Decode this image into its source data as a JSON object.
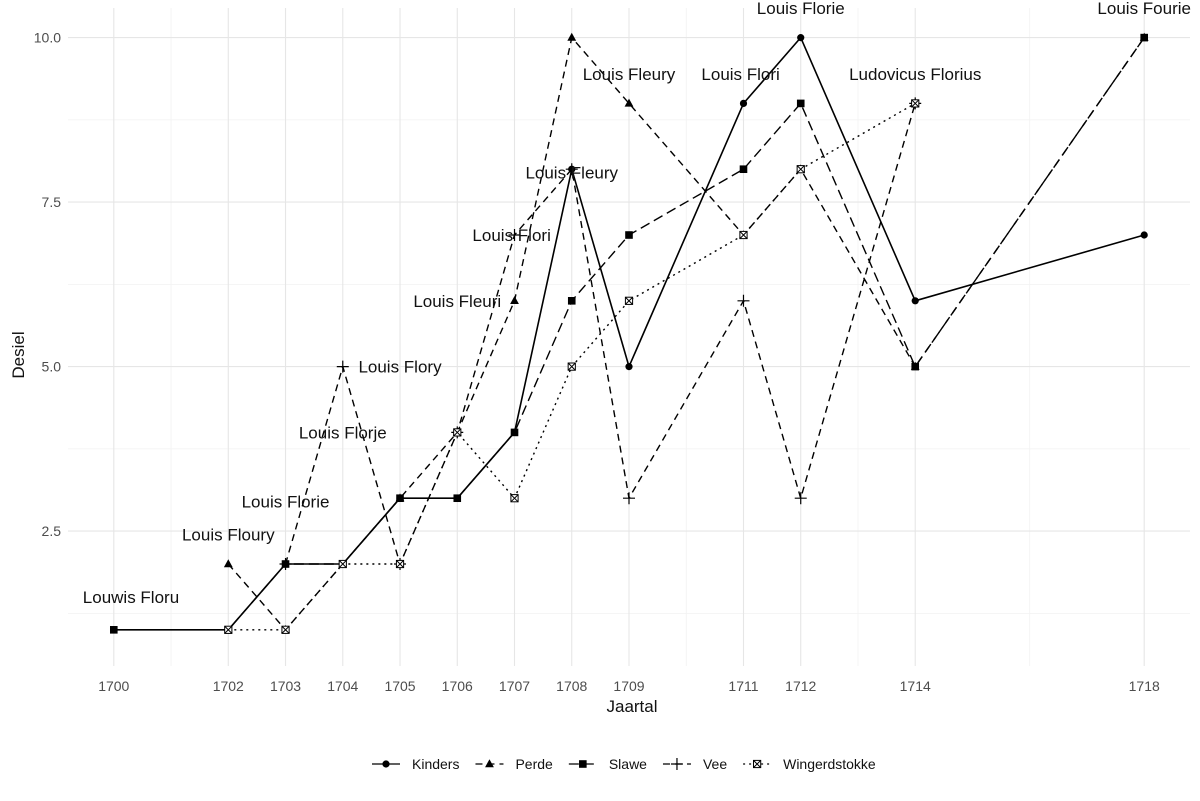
{
  "chart_data": {
    "type": "line",
    "title": "",
    "xlabel": "Jaartal",
    "ylabel": "Desiel",
    "xlim": [
      1699.2,
      1718.8
    ],
    "ylim": [
      0.45,
      10.45
    ],
    "x_ticks": [
      1700,
      1702,
      1703,
      1704,
      1705,
      1706,
      1707,
      1708,
      1709,
      1711,
      1712,
      1714,
      1718
    ],
    "y_ticks": [
      2.5,
      5.0,
      7.5,
      10.0
    ],
    "y_tick_labels": [
      "2.5",
      "5.0",
      "7.5",
      "10.0"
    ],
    "grid": true,
    "legend_position": "bottom",
    "series": [
      {
        "name": "Kinders",
        "line": "solid",
        "marker": "circle",
        "x": [
          1700,
          1702,
          1703,
          1704,
          1705,
          1706,
          1707,
          1708,
          1709,
          1711,
          1712,
          1714,
          1718
        ],
        "y": [
          1,
          1,
          2,
          2,
          3,
          3,
          4,
          8,
          5,
          9,
          10,
          6,
          7
        ]
      },
      {
        "name": "Perde",
        "line": "dashed",
        "marker": "triangle",
        "x": [
          1702,
          1703,
          1705,
          1706,
          1707,
          1708,
          1709,
          1711,
          1712,
          1714,
          1718
        ],
        "y": [
          2,
          1,
          3,
          4,
          6,
          10,
          9,
          7,
          8,
          5,
          10
        ]
      },
      {
        "name": "Slawe",
        "line": "longdash",
        "marker": "square",
        "x": [
          1700,
          1702,
          1703,
          1704,
          1705,
          1706,
          1707,
          1708,
          1709,
          1711,
          1712,
          1714,
          1718
        ],
        "y": [
          1,
          1,
          2,
          2,
          3,
          3,
          4,
          6,
          7,
          8,
          9,
          5,
          10
        ]
      },
      {
        "name": "Vee",
        "line": "dashed",
        "marker": "plus",
        "x": [
          1703,
          1704,
          1705,
          1706,
          1707,
          1708,
          1709,
          1711,
          1712,
          1714
        ],
        "y": [
          2,
          5,
          2,
          4,
          7,
          8,
          3,
          6,
          3,
          9
        ]
      },
      {
        "name": "Wingerdstokke",
        "line": "dotted",
        "marker": "square-cross",
        "x": [
          1702,
          1703,
          1704,
          1705,
          1706,
          1707,
          1708,
          1709,
          1711,
          1712,
          1714
        ],
        "y": [
          1,
          1,
          2,
          2,
          4,
          3,
          5,
          6,
          7,
          8,
          9
        ]
      }
    ],
    "annotations": [
      {
        "text": "Louwis Floru",
        "x": 1700.3,
        "y": 1.5
      },
      {
        "text": "Louis Floury",
        "x": 1702.0,
        "y": 2.45
      },
      {
        "text": "Louis Florie",
        "x": 1703.0,
        "y": 2.95
      },
      {
        "text": "Louis Florje",
        "x": 1704.0,
        "y": 4.0
      },
      {
        "text": "Louis Flory",
        "x": 1705.0,
        "y": 5.0
      },
      {
        "text": "Louis Fleuri",
        "x": 1706.0,
        "y": 6.0
      },
      {
        "text": "Louis Flori",
        "x": 1706.95,
        "y": 7.0
      },
      {
        "text": "Louis Fleury",
        "x": 1708.0,
        "y": 7.95
      },
      {
        "text": "Louis Fleury",
        "x": 1709.0,
        "y": 9.45
      },
      {
        "text": "Louis Flori",
        "x": 1710.95,
        "y": 9.45
      },
      {
        "text": "Louis Florie",
        "x": 1712.0,
        "y": 10.45
      },
      {
        "text": "Ludovicus Florius",
        "x": 1714.0,
        "y": 9.45
      },
      {
        "text": "Louis Fourie",
        "x": 1718.0,
        "y": 10.45
      }
    ]
  }
}
